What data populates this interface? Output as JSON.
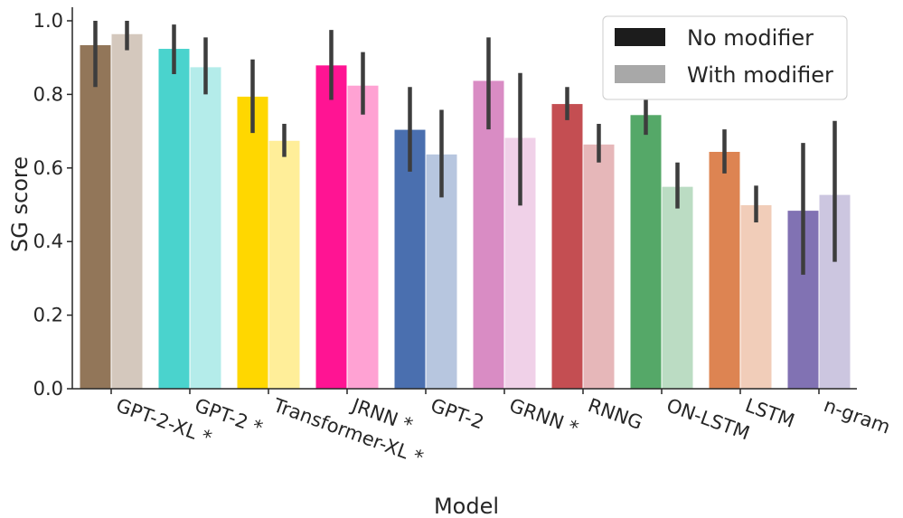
{
  "chart_data": {
    "type": "bar",
    "xlabel": "Model",
    "ylabel": "SG score",
    "ylim": [
      0,
      1.05
    ],
    "yticks": [
      "0.0",
      "0.2",
      "0.4",
      "0.6",
      "0.8",
      "1.0"
    ],
    "grid": false,
    "legend_position": "top-right",
    "categories": [
      "GPT-2-XL *",
      "GPT-2 *",
      "Transformer-XL *",
      "JRNN *",
      "GPT-2",
      "GRNN *",
      "RNNG",
      "ON-LSTM",
      "LSTM",
      "n-gram"
    ],
    "colors": {
      "no_modifier": [
        "#927659",
        "#4ad3cd",
        "#ffd700",
        "#ff1493",
        "#4a6faf",
        "#d98cc4",
        "#c44e52",
        "#55a868",
        "#dd8452",
        "#8172b3"
      ],
      "with_modifier": [
        "#d4c8bd",
        "#b4ecea",
        "#ffee99",
        "#ffa2d3",
        "#b7c6df",
        "#f0d1e8",
        "#e6b7b9",
        "#bbdcc3",
        "#f1cdb9",
        "#ccc6e0"
      ]
    },
    "series": [
      {
        "name": "No modifier",
        "legend_color": "#1c1c1c",
        "values": [
          0.935,
          0.925,
          0.795,
          0.88,
          0.705,
          0.838,
          0.775,
          0.745,
          0.645,
          0.485
        ],
        "err_low": [
          0.82,
          0.855,
          0.695,
          0.785,
          0.59,
          0.705,
          0.73,
          0.69,
          0.585,
          0.31
        ],
        "err_high": [
          1.0,
          0.99,
          0.895,
          0.975,
          0.82,
          0.955,
          0.82,
          0.8,
          0.705,
          0.668
        ]
      },
      {
        "name": "With modifier",
        "legend_color": "#a8a8a8",
        "values": [
          0.965,
          0.875,
          0.675,
          0.825,
          0.638,
          0.683,
          0.665,
          0.55,
          0.5,
          0.528
        ],
        "err_low": [
          0.92,
          0.8,
          0.63,
          0.745,
          0.52,
          0.498,
          0.615,
          0.49,
          0.452,
          0.345
        ],
        "err_high": [
          1.0,
          0.955,
          0.72,
          0.915,
          0.758,
          0.858,
          0.72,
          0.615,
          0.552,
          0.728
        ]
      }
    ]
  }
}
